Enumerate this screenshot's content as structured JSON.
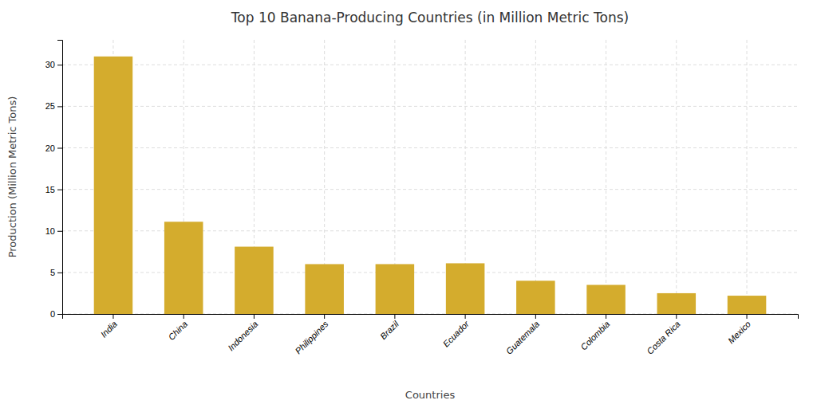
{
  "chart_data": {
    "type": "bar",
    "title": "Top 10 Banana-Producing Countries (in Million Metric Tons)",
    "xlabel": "Countries",
    "ylabel": "Production (Million Metric Tons)",
    "categories": [
      "India",
      "China",
      "Indonesia",
      "Philippines",
      "Brazil",
      "Ecuador",
      "Guatemala",
      "Colombia",
      "Costa Rica",
      "Mexico"
    ],
    "values": [
      31,
      11.1,
      8.1,
      6.0,
      6.0,
      6.1,
      4.0,
      3.5,
      2.5,
      2.2
    ],
    "color": "#D4AC2D",
    "ylim": [
      0,
      33
    ],
    "yticks": [
      0,
      5,
      10,
      15,
      20,
      25,
      30
    ],
    "grid": true
  }
}
